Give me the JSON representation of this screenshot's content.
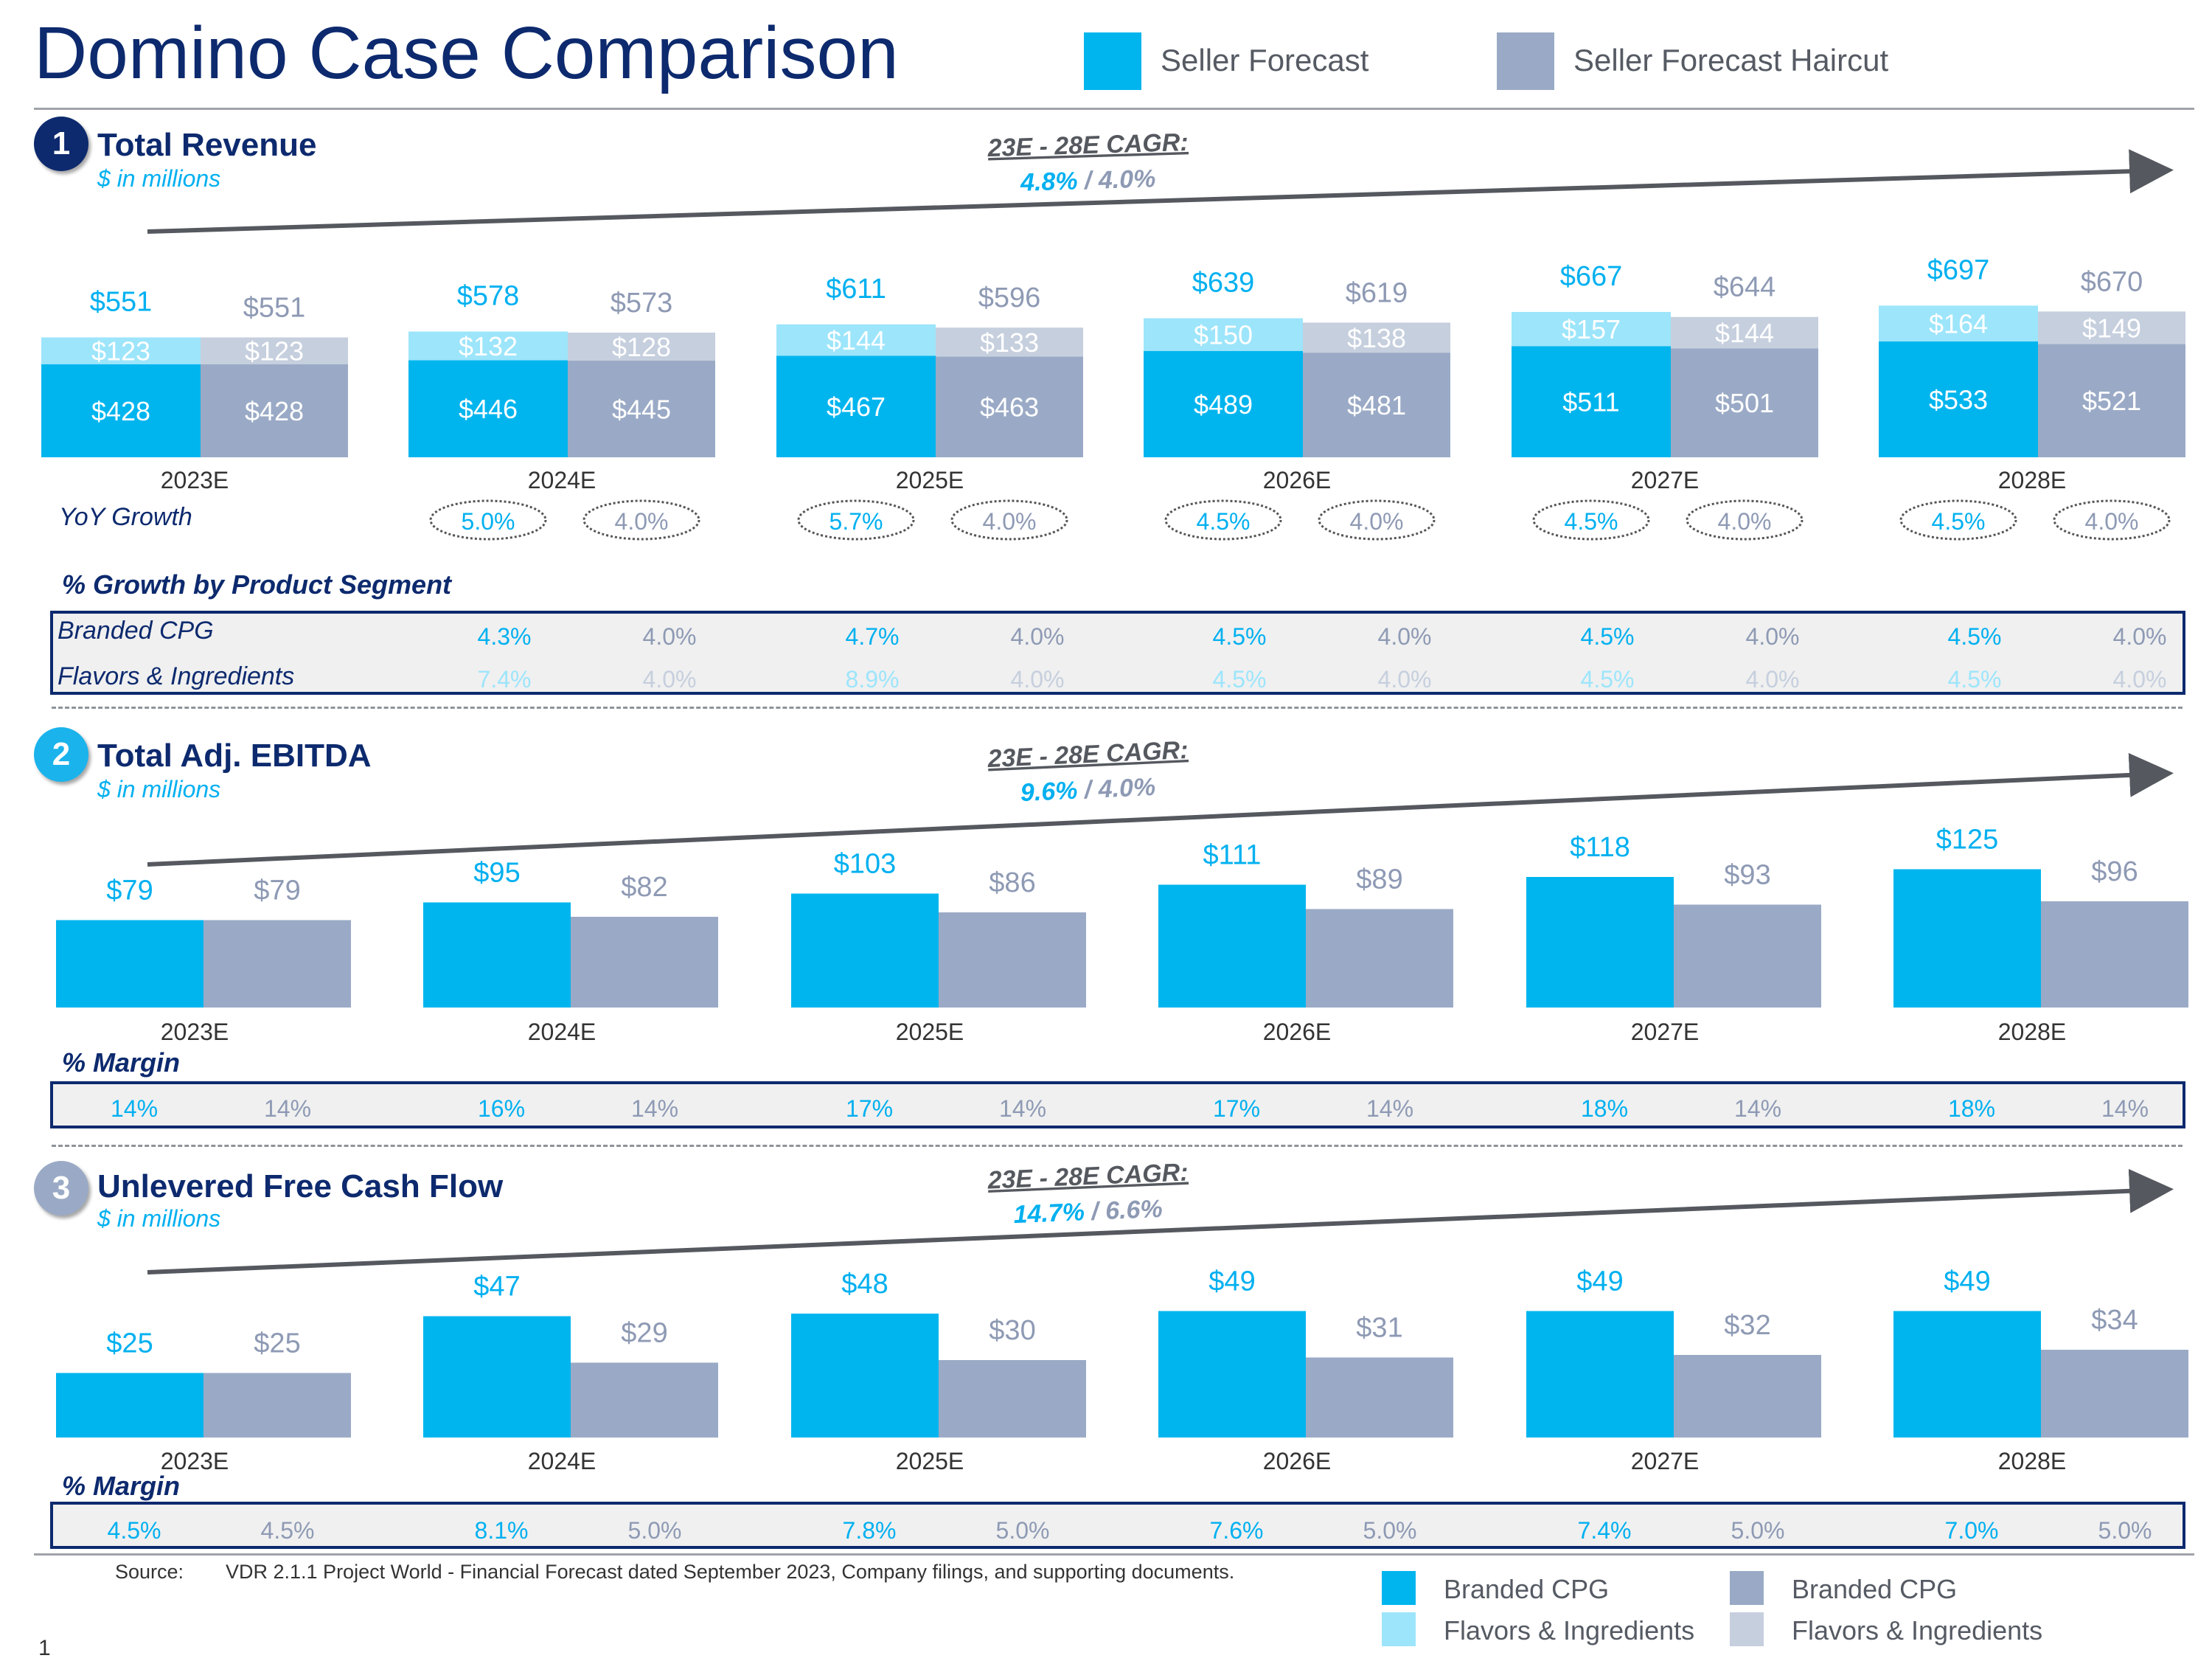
{
  "title": "Domino Case Comparison",
  "legend_top": {
    "seller": "Seller Forecast",
    "haircut": "Seller Forecast Haircut"
  },
  "colors": {
    "seller_dark": "#00b5ee",
    "seller_light": "#9de5fb",
    "haircut_dark": "#9aaac6",
    "haircut_light": "#c6cfde",
    "navy": "#0d2a6e",
    "arrow": "#55595f"
  },
  "sections": {
    "revenue": {
      "number": "1",
      "title": "Total Revenue",
      "subtitle": "$ in millions"
    },
    "ebitda": {
      "number": "2",
      "title": "Total Adj. EBITDA",
      "subtitle": "$ in millions"
    },
    "fcf": {
      "number": "3",
      "title": "Unlevered Free Cash Flow",
      "subtitle": "$ in millions"
    }
  },
  "labels": {
    "yoy": "YoY Growth",
    "segment_header": "% Growth by Product Segment",
    "branded": "Branded CPG",
    "flavors": "Flavors & Ingredients",
    "margin": "% Margin"
  },
  "chart_data": [
    {
      "id": "revenue",
      "type": "bar",
      "title": "Total Revenue",
      "subtitle": "$ in millions",
      "categories": [
        "2023E",
        "2024E",
        "2025E",
        "2026E",
        "2027E",
        "2028E"
      ],
      "stacked": true,
      "series": [
        {
          "name": "Seller Forecast - Branded CPG",
          "values": [
            428,
            446,
            467,
            489,
            511,
            533
          ]
        },
        {
          "name": "Seller Forecast - Flavors & Ingredients",
          "values": [
            123,
            132,
            144,
            150,
            157,
            164
          ]
        },
        {
          "name": "Seller Forecast Haircut - Branded CPG",
          "values": [
            428,
            445,
            463,
            481,
            501,
            521
          ]
        },
        {
          "name": "Seller Forecast Haircut - Flavors & Ingredients",
          "values": [
            123,
            128,
            133,
            138,
            144,
            149
          ]
        }
      ],
      "totals": {
        "seller": [
          551,
          578,
          611,
          639,
          667,
          697
        ],
        "haircut": [
          551,
          573,
          596,
          619,
          644,
          670
        ]
      },
      "cagr": {
        "title": "23E - 28E CAGR:",
        "seller": "4.8%",
        "haircut": "4.0%"
      }
    },
    {
      "id": "ebitda",
      "type": "bar",
      "title": "Total Adj. EBITDA",
      "subtitle": "$ in millions",
      "categories": [
        "2023E",
        "2024E",
        "2025E",
        "2026E",
        "2027E",
        "2028E"
      ],
      "series": [
        {
          "name": "Seller Forecast",
          "values": [
            79,
            95,
            103,
            111,
            118,
            125
          ]
        },
        {
          "name": "Seller Forecast Haircut",
          "values": [
            79,
            82,
            86,
            89,
            93,
            96
          ]
        }
      ],
      "cagr": {
        "title": "23E - 28E CAGR:",
        "seller": "9.6%",
        "haircut": "4.0%"
      }
    },
    {
      "id": "fcf",
      "type": "bar",
      "title": "Unlevered Free Cash Flow",
      "subtitle": "$ in millions",
      "categories": [
        "2023E",
        "2024E",
        "2025E",
        "2026E",
        "2027E",
        "2028E"
      ],
      "series": [
        {
          "name": "Seller Forecast",
          "values": [
            25,
            47,
            48,
            49,
            49,
            49
          ]
        },
        {
          "name": "Seller Forecast Haircut",
          "values": [
            25,
            29,
            30,
            31,
            32,
            34
          ]
        }
      ],
      "cagr": {
        "title": "23E - 28E CAGR:",
        "seller": "14.7%",
        "haircut": "6.6%"
      }
    }
  ],
  "yoy_growth": {
    "seller": [
      "5.0%",
      "5.7%",
      "4.5%",
      "4.5%",
      "4.5%"
    ],
    "haircut": [
      "4.0%",
      "4.0%",
      "4.0%",
      "4.0%",
      "4.0%"
    ]
  },
  "segment_growth": {
    "branded": {
      "seller": [
        "4.3%",
        "4.7%",
        "4.5%",
        "4.5%",
        "4.5%"
      ],
      "haircut": [
        "4.0%",
        "4.0%",
        "4.0%",
        "4.0%",
        "4.0%"
      ]
    },
    "flavors": {
      "seller": [
        "7.4%",
        "8.9%",
        "4.5%",
        "4.5%",
        "4.5%"
      ],
      "haircut": [
        "4.0%",
        "4.0%",
        "4.0%",
        "4.0%",
        "4.0%"
      ]
    }
  },
  "ebitda_margin": {
    "seller": [
      "14%",
      "16%",
      "17%",
      "17%",
      "18%",
      "18%"
    ],
    "haircut": [
      "14%",
      "14%",
      "14%",
      "14%",
      "14%",
      "14%"
    ]
  },
  "fcf_margin": {
    "seller": [
      "4.5%",
      "8.1%",
      "7.8%",
      "7.6%",
      "7.4%",
      "7.0%"
    ],
    "haircut": [
      "4.5%",
      "5.0%",
      "5.0%",
      "5.0%",
      "5.0%",
      "5.0%"
    ]
  },
  "source": {
    "label": "Source:",
    "text": "VDR 2.1.1 Project World - Financial Forecast dated September 2023, Company filings, and supporting documents."
  },
  "bottom_legend": {
    "seller_branded": "Branded CPG",
    "seller_flavors": "Flavors & Ingredients",
    "haircut_branded": "Branded CPG",
    "haircut_flavors": "Flavors & Ingredients"
  },
  "page_number": "1"
}
